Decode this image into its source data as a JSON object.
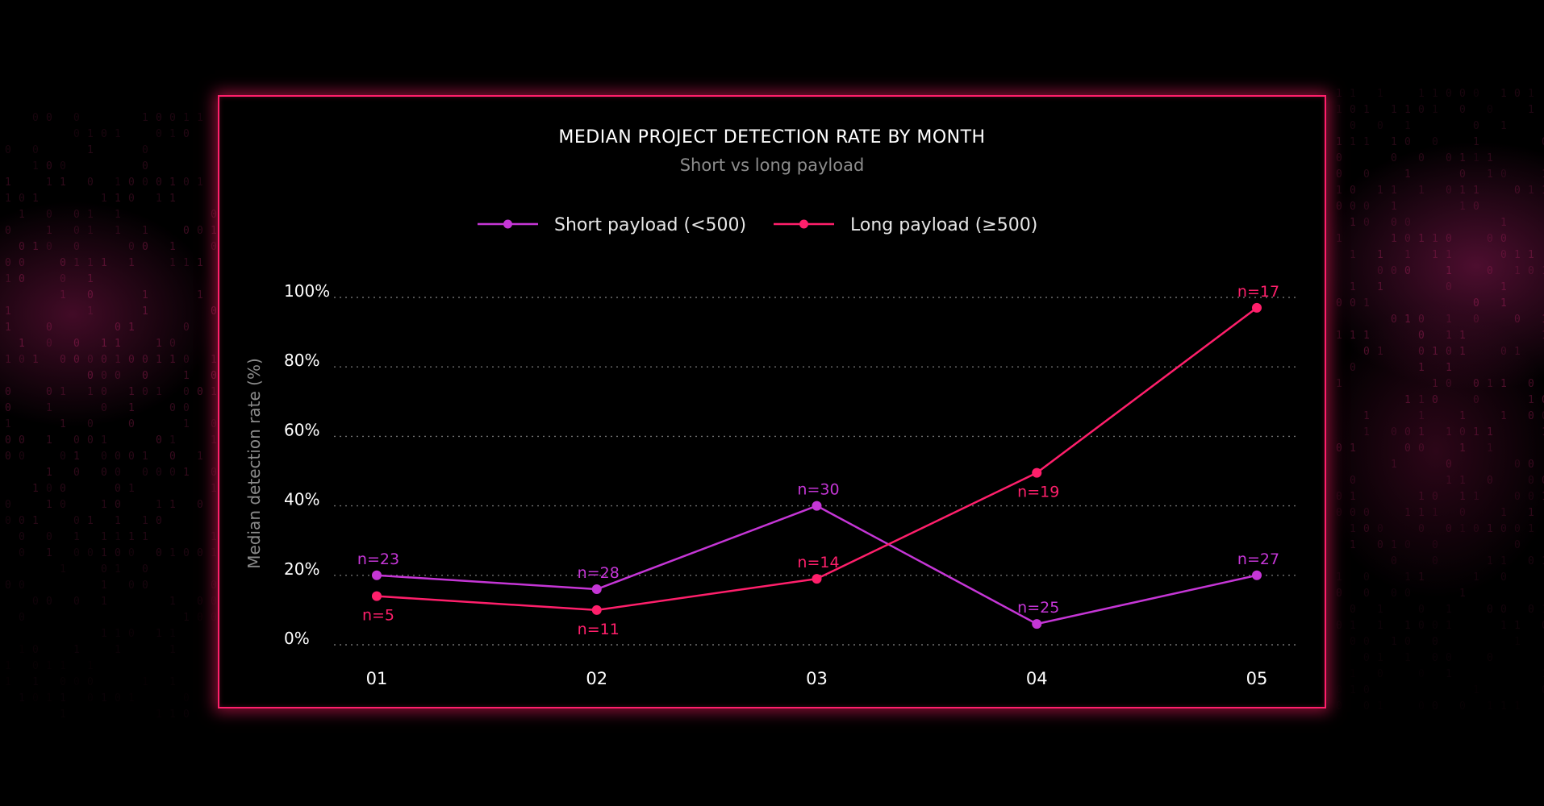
{
  "colors": {
    "background": "#000000",
    "frame": "#ff1f6b",
    "short_series": "#c536d6",
    "long_series": "#ff1f6b",
    "grid": "#6e6e6e"
  },
  "chart_data": {
    "type": "line",
    "title": "MEDIAN PROJECT DETECTION RATE BY MONTH",
    "subtitle": "Short vs long payload",
    "xlabel": "",
    "ylabel": "Median detection rate (%)",
    "categories": [
      "01",
      "02",
      "03",
      "04",
      "05"
    ],
    "ylim": [
      0,
      100
    ],
    "yticks": [
      0,
      20,
      40,
      60,
      80,
      100
    ],
    "ytick_labels": [
      "0%",
      "20%",
      "40%",
      "60%",
      "80%",
      "100%"
    ],
    "grid": true,
    "legend_position": "top-center",
    "series": [
      {
        "name": "Short payload (<500)",
        "color": "#c536d6",
        "values": [
          20,
          16,
          40,
          6,
          20
        ],
        "labels": [
          "n=23",
          "n=28",
          "n=30",
          "n=25",
          "n=27"
        ],
        "label_positions": [
          "above",
          "above",
          "above",
          "above",
          "above"
        ]
      },
      {
        "name": "Long payload (≥500)",
        "color": "#ff1f6b",
        "values": [
          14,
          10,
          19,
          49.5,
          97
        ],
        "labels": [
          "n=5",
          "n=11",
          "n=14",
          "n=19",
          "n=17"
        ],
        "label_positions": [
          "below",
          "below",
          "above",
          "below",
          "above"
        ]
      }
    ]
  }
}
